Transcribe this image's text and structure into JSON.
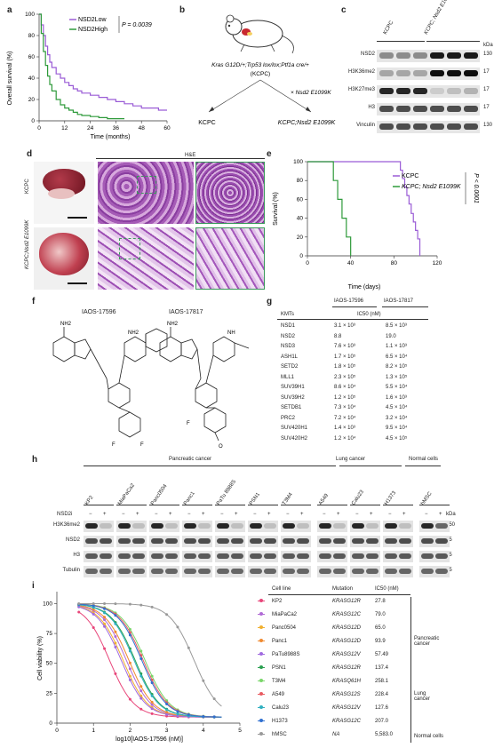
{
  "panels": {
    "a": "a",
    "b": "b",
    "c": "c",
    "d": "d",
    "e": "e",
    "f": "f",
    "g": "g",
    "h": "h",
    "i": "i"
  },
  "a": {
    "ylabel": "Overall survival (%)",
    "xlabel": "Time (months)",
    "legend": [
      "NSD2Low",
      "NSD2High"
    ],
    "pvalue": "P = 0.0039",
    "yticks": [
      "0",
      "20",
      "40",
      "60",
      "80",
      "100"
    ],
    "xticks": [
      "0",
      "12",
      "24",
      "36",
      "48",
      "60"
    ]
  },
  "b": {
    "genotype": "Kras G12D/+;Trp53 lox/lox;Ptf1a cre/+",
    "genotype_short": "(KCPC)",
    "cross": "× Nsd2 E1099K",
    "left": "KCPC",
    "right": "KCPC;Nsd2 E1099K"
  },
  "c": {
    "col_left": "KCPC",
    "col_right": "KCPC; Nsd2 E1099K",
    "rows": [
      "NSD2",
      "H3K36me2",
      "H3K27me3",
      "H3",
      "Vinculin"
    ],
    "kda_header": "kDa",
    "kda": [
      "130",
      "17",
      "17",
      "17",
      "130"
    ]
  },
  "d": {
    "he_title": "H&E",
    "row1": "KCPC",
    "row2": "KCPC;Nsd2 E1099K"
  },
  "e": {
    "ylabel": "Survival (%)",
    "xlabel": "Time (days)",
    "legend": [
      "KCPC",
      "KCPC; Nsd2 E1099K"
    ],
    "pvalue": "P < 0.0001",
    "yticks": [
      "0",
      "20",
      "40",
      "60",
      "80",
      "100"
    ],
    "xticks": [
      "0",
      "40",
      "80",
      "120"
    ]
  },
  "f": {
    "left": "IAOS-17596",
    "right": "IAOS-17817"
  },
  "g": {
    "col1": "IAOS-17596",
    "col2": "IAOS-17817",
    "header_kmt": "KMTs",
    "header_ic50": "IC50 (nM)",
    "rows": [
      [
        "NSD1",
        "3.1 × 10³",
        "8.5 × 10³"
      ],
      [
        "NSD2",
        "8.8",
        "19.0"
      ],
      [
        "NSD3",
        "7.6 × 10³",
        "1.1 × 10³"
      ],
      [
        "ASH1L",
        "1.7 × 10⁵",
        "6.5 × 10⁴"
      ],
      [
        "SETD2",
        "1.8 × 10⁵",
        "8.2 × 10⁵"
      ],
      [
        "MLL1",
        "2.3 × 10⁵",
        "1.3 × 10⁵"
      ],
      [
        "SUV39H1",
        "8.6 × 10⁴",
        "5.5 × 10⁴"
      ],
      [
        "SUV39H2",
        "1.2 × 10⁵",
        "1.6 × 10³"
      ],
      [
        "SETDB1",
        "7.3 × 10⁴",
        "4.5 × 10⁴"
      ],
      [
        "PRC2",
        "7.2 × 10⁴",
        "3.2 × 10⁴"
      ],
      [
        "SUV420H1",
        "1.4 × 10³",
        "9.5 × 10⁴"
      ],
      [
        "SUV420H2",
        "1.2 × 10⁴",
        "4.5 × 10⁵"
      ]
    ]
  },
  "h": {
    "group1": "Pancreatic cancer",
    "group2": "Lung cancer",
    "group3": "Normal cells",
    "cells": [
      "KP2",
      "MiaPaCa2",
      "Panc0504",
      "Panc1",
      "PaTu 8988S",
      "PSN1",
      "T3M4",
      "A549",
      "Calu23",
      "H1373",
      "hMSC"
    ],
    "nsd2i": "NSD2i",
    "minus": "−",
    "plus": "+",
    "rows": [
      "H3K36me2",
      "NSD2",
      "H3",
      "Tubulin"
    ],
    "kda_header": "kDa",
    "kda": [
      "150",
      "15",
      "15",
      "15"
    ]
  },
  "i": {
    "ylabel": "Cell viability (%)",
    "xlabel": "log10[IAOS-17596 (nM)]",
    "yticks": [
      "0",
      "25",
      "50",
      "75",
      "100"
    ],
    "xticks": [
      "0",
      "1",
      "2",
      "3",
      "4",
      "5"
    ],
    "table_headers": [
      "Cell line",
      "Mutation",
      "IC50 (nM)"
    ],
    "groups": [
      "Pancreatic cancer",
      "Lung cancer",
      "Normal cells"
    ],
    "rows": [
      {
        "name": "KP2",
        "mut": "KRASG12R",
        "ic50": "27.8",
        "color": "#e8467a"
      },
      {
        "name": "MiaPaCa2",
        "mut": "KRASG12C",
        "ic50": "79.0",
        "color": "#b06ad6"
      },
      {
        "name": "Panc0504",
        "mut": "KRASG12D",
        "ic50": "65.0",
        "color": "#f0b030"
      },
      {
        "name": "Panc1",
        "mut": "KRASG12D",
        "ic50": "93.9",
        "color": "#f08a30"
      },
      {
        "name": "PaTu8988S",
        "mut": "KRASG12V",
        "ic50": "57.49",
        "color": "#a06ae0"
      },
      {
        "name": "PSN1",
        "mut": "KRASG12R",
        "ic50": "137.4",
        "color": "#2aa050"
      },
      {
        "name": "T3M4",
        "mut": "KRASQ61H",
        "ic50": "258.1",
        "color": "#7ad66a"
      },
      {
        "name": "A549",
        "mut": "KRASG12S",
        "ic50": "228.4",
        "color": "#e85a60"
      },
      {
        "name": "Calu23",
        "mut": "KRASG12V",
        "ic50": "127.6",
        "color": "#30b0c0"
      },
      {
        "name": "H1373",
        "mut": "KRASG12C",
        "ic50": "207.0",
        "color": "#3070d0"
      },
      {
        "name": "hMSC",
        "mut": "NA",
        "ic50": "5,583.0",
        "color": "#999999"
      }
    ]
  },
  "chart_data": [
    {
      "type": "line",
      "ylabel": "Overall survival (%)",
      "xlabel": "Time (months)",
      "xlim": [
        0,
        60
      ],
      "ylim": [
        0,
        100
      ],
      "series": [
        {
          "name": "NSD2Low",
          "color": "#9a5cd6",
          "x": [
            0,
            1,
            2,
            3,
            4,
            5,
            6,
            8,
            10,
            12,
            14,
            16,
            18,
            20,
            24,
            28,
            32,
            36,
            40,
            44,
            48,
            52,
            56,
            60
          ],
          "y": [
            100,
            90,
            80,
            70,
            62,
            55,
            50,
            44,
            40,
            36,
            33,
            30,
            28,
            26,
            24,
            22,
            20,
            18,
            16,
            14,
            12,
            12,
            10,
            10
          ]
        },
        {
          "name": "NSD2High",
          "color": "#2e9a3a",
          "x": [
            0,
            1,
            2,
            3,
            4,
            5,
            6,
            8,
            10,
            12,
            14,
            16,
            18,
            20,
            24,
            28,
            32,
            36,
            40
          ],
          "y": [
            100,
            82,
            65,
            52,
            42,
            34,
            28,
            20,
            15,
            12,
            10,
            8,
            6,
            5,
            4,
            3,
            2,
            2,
            2
          ]
        }
      ]
    },
    {
      "type": "line",
      "ylabel": "Survival (%)",
      "xlabel": "Time (days)",
      "xlim": [
        0,
        120
      ],
      "ylim": [
        0,
        100
      ],
      "series": [
        {
          "name": "KCPC",
          "color": "#9a5cd6",
          "x": [
            0,
            84,
            86,
            88,
            90,
            92,
            94,
            96,
            98,
            100,
            102,
            104
          ],
          "y": [
            100,
            100,
            91,
            82,
            73,
            64,
            55,
            45,
            36,
            27,
            18,
            0
          ]
        },
        {
          "name": "KCPC; Nsd2 E1099K",
          "color": "#2e9a3a",
          "x": [
            0,
            20,
            24,
            28,
            32,
            36,
            40
          ],
          "y": [
            100,
            100,
            80,
            60,
            40,
            20,
            0
          ]
        }
      ]
    },
    {
      "type": "line",
      "ylabel": "Cell viability (%)",
      "xlabel": "log10[IAOS-17596 (nM)]",
      "xlim": [
        0,
        5
      ],
      "ylim": [
        0,
        110
      ],
      "series": [
        {
          "name": "KP2",
          "log_ic50": 1.44
        },
        {
          "name": "MiaPaCa2",
          "log_ic50": 1.9
        },
        {
          "name": "Panc0504",
          "log_ic50": 1.81
        },
        {
          "name": "Panc1",
          "log_ic50": 1.97
        },
        {
          "name": "PaTu8988S",
          "log_ic50": 1.76
        },
        {
          "name": "PSN1",
          "log_ic50": 2.14
        },
        {
          "name": "T3M4",
          "log_ic50": 2.41
        },
        {
          "name": "A549",
          "log_ic50": 2.36
        },
        {
          "name": "Calu23",
          "log_ic50": 2.11
        },
        {
          "name": "H1373",
          "log_ic50": 2.32
        },
        {
          "name": "hMSC",
          "log_ic50": 3.75
        }
      ]
    }
  ]
}
